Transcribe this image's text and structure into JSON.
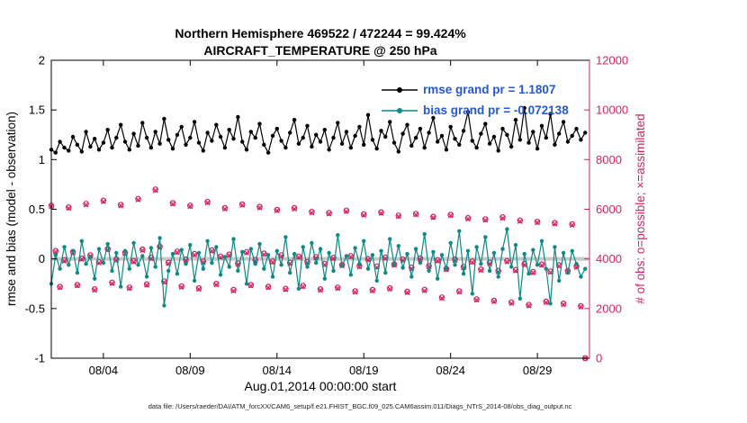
{
  "page": {
    "background": "#ffffff"
  },
  "footer": {
    "text": "data file: /Users/raeder/DAI/ATM_forcXX/CAM6_setup/f.e21.FHIST_BGC.f09_025.CAM6assim.011/Diags_NTrS_2014-08/obs_diag_output.nc"
  },
  "chart_data": {
    "type": "line",
    "title_line1": "Northern Hemisphere 469522 / 472244 = 99.424%",
    "title_line2": "AIRCRAFT_TEMPERATURE @ 250 hPa",
    "xlabel": "Aug.01,2014 00:00:00 start",
    "ylabel_left": "rmse and bias (model - observation)",
    "ylabel_right": "# of obs: o=possible; ×=assimilated",
    "x_range_days": [
      0,
      31
    ],
    "ylim_left": [
      -1,
      2
    ],
    "ylim_right": [
      0,
      12000
    ],
    "grid": "off",
    "legend_position": "top-center-inside",
    "time_step_days": 0.25,
    "xticks": [
      {
        "day": 3,
        "label": "08/04"
      },
      {
        "day": 8,
        "label": "08/09"
      },
      {
        "day": 13,
        "label": "08/14"
      },
      {
        "day": 18,
        "label": "08/19"
      },
      {
        "day": 23,
        "label": "08/24"
      },
      {
        "day": 28,
        "label": "08/29"
      }
    ],
    "yticks_left": [
      {
        "v": -1,
        "label": "-1"
      },
      {
        "v": -0.5,
        "label": "-0.5"
      },
      {
        "v": 0,
        "label": "0"
      },
      {
        "v": 0.5,
        "label": "0.5"
      },
      {
        "v": 1,
        "label": "1"
      },
      {
        "v": 1.5,
        "label": "1.5"
      },
      {
        "v": 2,
        "label": "2"
      }
    ],
    "yticks_right": [
      {
        "v": 0,
        "label": "0"
      },
      {
        "v": 2000,
        "label": "2000"
      },
      {
        "v": 4000,
        "label": "4000"
      },
      {
        "v": 6000,
        "label": "6000"
      },
      {
        "v": 8000,
        "label": "8000"
      },
      {
        "v": 10000,
        "label": "10000"
      },
      {
        "v": 12000,
        "label": "12000"
      }
    ],
    "zero_line": {
      "value": 0,
      "color": "#c8c8c8"
    },
    "legend_text_color": "#2458d6",
    "legend": [
      {
        "label": "rmse grand pr = 1.1807",
        "series": "rmse"
      },
      {
        "label": "bias grand pr = -0.072138",
        "series": "bias"
      }
    ],
    "series": [
      {
        "name": "rmse",
        "axis": "left",
        "color": "#000000",
        "marker": "dot",
        "values": [
          1.1,
          1.07,
          1.18,
          1.12,
          1.09,
          1.23,
          1.15,
          1.08,
          1.28,
          1.13,
          1.21,
          1.1,
          1.17,
          1.3,
          1.12,
          1.22,
          1.35,
          1.18,
          1.1,
          1.26,
          1.14,
          1.37,
          1.22,
          1.12,
          1.28,
          1.16,
          1.41,
          1.2,
          1.11,
          1.25,
          1.33,
          1.15,
          1.22,
          1.38,
          1.17,
          1.09,
          1.27,
          1.19,
          1.35,
          1.23,
          1.12,
          1.3,
          1.21,
          1.43,
          1.18,
          1.1,
          1.28,
          1.22,
          1.36,
          1.15,
          1.07,
          1.24,
          1.31,
          1.19,
          1.12,
          1.27,
          1.4,
          1.16,
          1.22,
          1.34,
          1.13,
          1.25,
          1.18,
          1.3,
          1.1,
          1.22,
          1.37,
          1.16,
          1.28,
          1.12,
          1.24,
          1.33,
          1.15,
          1.45,
          1.2,
          1.11,
          1.29,
          1.23,
          1.38,
          1.17,
          1.08,
          1.26,
          1.35,
          1.14,
          1.22,
          1.31,
          1.12,
          1.27,
          1.42,
          1.18,
          1.24,
          1.1,
          1.33,
          1.21,
          1.15,
          1.29,
          1.48,
          1.19,
          1.12,
          1.26,
          1.36,
          1.16,
          1.23,
          1.09,
          1.31,
          1.25,
          1.13,
          1.4,
          1.2,
          1.52,
          1.17,
          1.28,
          1.11,
          1.34,
          1.22,
          1.46,
          1.15,
          1.26,
          1.38,
          1.18,
          1.24,
          1.31,
          1.2,
          1.27
        ]
      },
      {
        "name": "bias",
        "axis": "left",
        "color": "#0d8986",
        "marker": "dot",
        "values": [
          -0.25,
          0.04,
          -0.1,
          0.12,
          -0.06,
          0.08,
          -0.14,
          0.18,
          -0.05,
          0.02,
          -0.2,
          0.1,
          -0.04,
          0.15,
          -0.12,
          0.06,
          -0.28,
          0.08,
          -0.1,
          0.16,
          -0.06,
          0.03,
          -0.18,
          0.11,
          -0.08,
          0.21,
          -0.47,
          -0.12,
          0.05,
          -0.15,
          0.09,
          -0.05,
          0.14,
          -0.22,
          0.06,
          -0.1,
          0.18,
          -0.04,
          0.12,
          -0.16,
          0.02,
          -0.08,
          0.2,
          -0.12,
          0.07,
          -0.25,
          0.1,
          -0.05,
          0.15,
          -0.1,
          0.04,
          -0.18,
          0.08,
          -0.06,
          0.22,
          -0.14,
          0.05,
          -0.3,
          0.12,
          -0.08,
          0.16,
          -0.04,
          0.1,
          -0.2,
          0.06,
          -0.12,
          0.24,
          -0.07,
          0.03,
          -0.16,
          0.11,
          -0.05,
          0.18,
          -0.1,
          0.04,
          -0.22,
          0.08,
          -0.14,
          0.2,
          -0.06,
          0.13,
          -0.09,
          0.05,
          -0.18,
          0.1,
          -0.04,
          0.25,
          -0.12,
          0.07,
          -0.2,
          0.04,
          -0.1,
          0.16,
          -0.06,
          0.28,
          -0.15,
          0.08,
          -0.35,
          0.12,
          -0.05,
          0.22,
          -0.12,
          0.06,
          -0.18,
          0.1,
          0.3,
          -0.08,
          0.14,
          -0.4,
          0.05,
          -0.15,
          0.09,
          -0.06,
          0.18,
          -0.1,
          -0.45,
          0.12,
          -0.22,
          0.06,
          -0.14,
          0.08,
          -0.05,
          -0.18,
          -0.1
        ]
      },
      {
        "name": "possible",
        "axis": "right",
        "color": "#d9215f",
        "marker": "circle",
        "values": [
          6150,
          4320,
          2880,
          3950,
          6080,
          4280,
          2950,
          4020,
          6220,
          4150,
          2780,
          3880,
          6350,
          4400,
          3050,
          3980,
          6180,
          4250,
          2850,
          3920,
          6420,
          4380,
          2980,
          4050,
          6800,
          4500,
          3100,
          3850,
          6250,
          4300,
          2900,
          3980,
          6150,
          4200,
          2820,
          3900,
          6300,
          4350,
          3000,
          4100,
          6050,
          4180,
          2750,
          3820,
          6200,
          4280,
          2950,
          3960,
          6100,
          4220,
          2880,
          3900,
          5980,
          4150,
          2800,
          3850,
          6050,
          4100,
          2920,
          3880,
          5900,
          4080,
          2780,
          3800,
          5850,
          4050,
          2850,
          3760,
          5950,
          4120,
          2700,
          3720,
          5800,
          4000,
          2750,
          3700,
          5880,
          4060,
          2820,
          3780,
          5750,
          3980,
          2680,
          3650,
          5820,
          4020,
          2760,
          3720,
          5700,
          3950,
          2450,
          3600,
          5780,
          3980,
          2700,
          3680,
          5650,
          3900,
          2380,
          3580,
          5600,
          3850,
          2320,
          3520,
          5680,
          3920,
          2250,
          3560,
          5550,
          3800,
          2150,
          3480,
          5500,
          3780,
          2280,
          3500,
          5450,
          3750,
          2200,
          3520,
          5400,
          3700,
          2100,
          0
        ]
      },
      {
        "name": "assimilated",
        "axis": "right",
        "color": "#d9215f",
        "marker": "x",
        "values": [
          6112,
          4285,
          2846,
          3912,
          6041,
          4238,
          2913,
          3985,
          6180,
          4112,
          2741,
          3844,
          6309,
          4362,
          3012,
          3941,
          6142,
          4213,
          2812,
          3883,
          6381,
          4342,
          2943,
          4013,
          6758,
          4462,
          3062,
          3814,
          6212,
          4262,
          2862,
          3942,
          6113,
          4163,
          2782,
          3863,
          6261,
          4312,
          2962,
          4062,
          6012,
          4142,
          2712,
          3783,
          6162,
          4242,
          2913,
          3923,
          6062,
          4183,
          2842,
          3863,
          5942,
          4112,
          2762,
          3813,
          6012,
          4063,
          2883,
          3842,
          5862,
          4042,
          2742,
          3763,
          5813,
          4013,
          2812,
          3723,
          5912,
          4083,
          2663,
          3683,
          5762,
          3962,
          2713,
          3663,
          5842,
          4022,
          2783,
          3742,
          5712,
          3942,
          2643,
          3612,
          5783,
          3983,
          2722,
          3683,
          5662,
          3912,
          2413,
          3562,
          5742,
          3942,
          2663,
          3642,
          5612,
          3862,
          2343,
          3542,
          5562,
          3812,
          2283,
          3483,
          5642,
          3883,
          2213,
          3522,
          5512,
          3762,
          2113,
          3442,
          5462,
          3742,
          2243,
          3462,
          5412,
          3712,
          2163,
          3482,
          5362,
          3662,
          2062,
          0
        ]
      }
    ]
  }
}
